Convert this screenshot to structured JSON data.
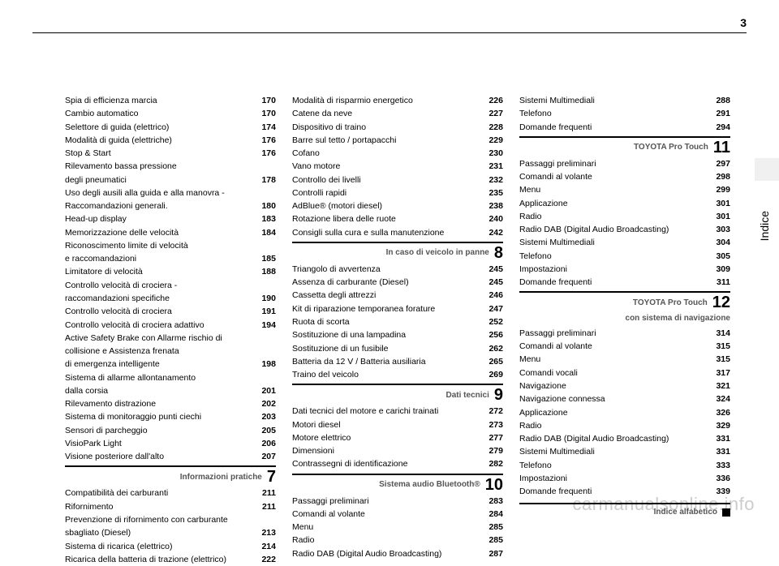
{
  "page_number": "3",
  "tab_label": "Indice",
  "watermark": "carmanualsonline.info",
  "col1": {
    "entries_a": [
      {
        "label": "Spia di efficienza marcia",
        "pg": "170"
      },
      {
        "label": "Cambio automatico",
        "pg": "170"
      },
      {
        "label": "Selettore di guida (elettrico)",
        "pg": "174"
      },
      {
        "label": "Modalità di guida (elettriche)",
        "pg": "176"
      },
      {
        "label": "Stop & Start",
        "pg": "176"
      }
    ],
    "wrap1_l1": "Rilevamento bassa pressione",
    "wrap1_l2": "degli pneumatici",
    "wrap1_pg": "178",
    "wrap2_l1": "Uso degli ausili alla guida e alla manovra -",
    "wrap2_l2": "Raccomandazioni generali.",
    "wrap2_pg": "180",
    "entries_b": [
      {
        "label": "Head-up display",
        "pg": "183"
      },
      {
        "label": "Memorizzazione delle velocità",
        "pg": "184"
      }
    ],
    "wrap3_l1": "Riconoscimento limite di velocità",
    "wrap3_l2": "e raccomandazioni",
    "wrap3_pg": "185",
    "entries_c": [
      {
        "label": "Limitatore di velocità",
        "pg": "188"
      }
    ],
    "wrap4_l1": "Controllo velocità di crociera -",
    "wrap4_l2": "raccomandazioni specifiche",
    "wrap4_pg": "190",
    "entries_d": [
      {
        "label": "Controllo velocità di crociera",
        "pg": "191"
      },
      {
        "label": "Controllo velocità di crociera adattivo",
        "pg": "194"
      }
    ],
    "wrap5_l1": "Active Safety Brake con Allarme rischio di",
    "wrap5_l2": "collisione e Assistenza frenata",
    "wrap5_l3": "di emergenza intelligente",
    "wrap5_pg": "198",
    "wrap6_l1": "Sistema di allarme allontanamento",
    "wrap6_l2": "dalla corsia",
    "wrap6_pg": "201",
    "entries_e": [
      {
        "label": "Rilevamento distrazione",
        "pg": "202"
      },
      {
        "label": "Sistema di monitoraggio punti ciechi",
        "pg": "203"
      },
      {
        "label": "Sensori di parcheggio",
        "pg": "205"
      },
      {
        "label": "VisioPark Light",
        "pg": "206"
      },
      {
        "label": "Visione posteriore dall'alto",
        "pg": "207"
      }
    ],
    "sec7_title": "Informazioni pratiche",
    "sec7_num": "7",
    "entries_f": [
      {
        "label": "Compatibilità dei carburanti",
        "pg": "211"
      },
      {
        "label": "Rifornimento",
        "pg": "211"
      }
    ],
    "wrap7_l1": "Prevenzione di rifornimento con carburante",
    "wrap7_l2": "sbagliato (Diesel)",
    "wrap7_pg": "213",
    "entries_g": [
      {
        "label": "Sistema di ricarica (elettrico)",
        "pg": "214"
      },
      {
        "label": "Ricarica della batteria di trazione (elettrico)",
        "pg": "222"
      }
    ]
  },
  "col2": {
    "entries_a": [
      {
        "label": "Modalità di risparmio energetico",
        "pg": "226"
      },
      {
        "label": "Catene da neve",
        "pg": "227"
      },
      {
        "label": "Dispositivo di traino",
        "pg": "228"
      },
      {
        "label": "Barre sul tetto / portapacchi",
        "pg": "229"
      },
      {
        "label": "Cofano",
        "pg": "230"
      },
      {
        "label": "Vano motore",
        "pg": "231"
      },
      {
        "label": "Controllo dei livelli",
        "pg": "232"
      },
      {
        "label": "Controlli rapidi",
        "pg": "235"
      },
      {
        "label": "AdBlue® (motori diesel)",
        "pg": "238"
      },
      {
        "label": "Rotazione libera delle ruote",
        "pg": "240"
      },
      {
        "label": "Consigli sulla cura e sulla manutenzione",
        "pg": "242"
      }
    ],
    "sec8_title": "In caso di veicolo in panne",
    "sec8_num": "8",
    "entries_b": [
      {
        "label": "Triangolo di avvertenza",
        "pg": "245"
      },
      {
        "label": "Assenza di carburante (Diesel)",
        "pg": "245"
      },
      {
        "label": "Cassetta degli attrezzi",
        "pg": "246"
      },
      {
        "label": "Kit di riparazione temporanea forature",
        "pg": "247"
      },
      {
        "label": "Ruota di scorta",
        "pg": "252"
      },
      {
        "label": "Sostituzione di una lampadina",
        "pg": "256"
      },
      {
        "label": "Sostituzione di un fusibile",
        "pg": "262"
      },
      {
        "label": "Batteria da 12 V / Batteria ausiliaria",
        "pg": "265"
      },
      {
        "label": "Traino del veicolo",
        "pg": "269"
      }
    ],
    "sec9_title": "Dati tecnici",
    "sec9_num": "9",
    "entries_c": [
      {
        "label": "Dati tecnici del motore e carichi trainati",
        "pg": "272"
      },
      {
        "label": "Motori diesel",
        "pg": "273"
      },
      {
        "label": "Motore elettrico",
        "pg": "277"
      },
      {
        "label": "Dimensioni",
        "pg": "279"
      },
      {
        "label": "Contrassegni di identificazione",
        "pg": "282"
      }
    ],
    "sec10_title": "Sistema audio Bluetooth®",
    "sec10_num": "10",
    "entries_d": [
      {
        "label": "Passaggi preliminari",
        "pg": "283"
      },
      {
        "label": "Comandi al volante",
        "pg": "284"
      },
      {
        "label": "Menu",
        "pg": "285"
      },
      {
        "label": "Radio",
        "pg": "285"
      },
      {
        "label": "Radio DAB (Digital Audio Broadcasting)",
        "pg": "287"
      }
    ]
  },
  "col3": {
    "entries_a": [
      {
        "label": "Sistemi Multimediali",
        "pg": "288"
      },
      {
        "label": "Telefono",
        "pg": "291"
      },
      {
        "label": "Domande frequenti",
        "pg": "294"
      }
    ],
    "sec11_title": "TOYOTA Pro Touch",
    "sec11_num": "11",
    "entries_b": [
      {
        "label": "Passaggi preliminari",
        "pg": "297"
      },
      {
        "label": "Comandi al volante",
        "pg": "298"
      },
      {
        "label": "Menu",
        "pg": "299"
      },
      {
        "label": "Applicazione",
        "pg": "301"
      },
      {
        "label": "Radio",
        "pg": "301"
      },
      {
        "label": "Radio DAB (Digital Audio Broadcasting)",
        "pg": "303"
      },
      {
        "label": "Sistemi Multimediali",
        "pg": "304"
      },
      {
        "label": "Telefono",
        "pg": "305"
      },
      {
        "label": "Impostazioni",
        "pg": "309"
      },
      {
        "label": "Domande frequenti",
        "pg": "311"
      }
    ],
    "sec12_title": "TOYOTA Pro Touch",
    "sec12_num": "12",
    "sec12_sub": "con sistema di navigazione",
    "entries_c": [
      {
        "label": "Passaggi preliminari",
        "pg": "314"
      },
      {
        "label": "Comandi al volante",
        "pg": "315"
      },
      {
        "label": "Menu",
        "pg": "315"
      },
      {
        "label": "Comandi vocali",
        "pg": "317"
      },
      {
        "label": "Navigazione",
        "pg": "321"
      },
      {
        "label": "Navigazione connessa",
        "pg": "324"
      },
      {
        "label": "Applicazione",
        "pg": "326"
      },
      {
        "label": "Radio",
        "pg": "329"
      },
      {
        "label": "Radio DAB (Digital Audio Broadcasting)",
        "pg": "331"
      },
      {
        "label": "Sistemi Multimediali",
        "pg": "331"
      },
      {
        "label": "Telefono",
        "pg": "333"
      },
      {
        "label": "Impostazioni",
        "pg": "336"
      },
      {
        "label": "Domande frequenti",
        "pg": "339"
      }
    ],
    "alpha_title": "Indice alfabetico"
  }
}
